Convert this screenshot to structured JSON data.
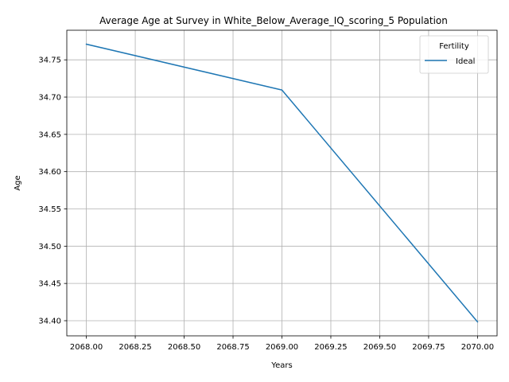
{
  "chart_data": {
    "type": "line",
    "title": "Average Age at Survey in White_Below_Average_IQ_scoring_5 Population",
    "xlabel": "Years",
    "ylabel": "Age",
    "x": [
      2068,
      2069,
      2070
    ],
    "series": [
      {
        "name": "Ideal",
        "values": [
          34.771,
          34.7095,
          34.3985
        ],
        "color": "#1f77b4"
      }
    ],
    "xlim": [
      2067.9,
      2070.1
    ],
    "ylim": [
      34.3797,
      34.7897
    ],
    "x_ticks": [
      2068.0,
      2068.25,
      2068.5,
      2068.75,
      2069.0,
      2069.25,
      2069.5,
      2069.75,
      2070.0
    ],
    "x_tick_labels": [
      "2068.00",
      "2068.25",
      "2068.50",
      "2068.75",
      "2069.00",
      "2069.25",
      "2069.50",
      "2069.75",
      "2070.00"
    ],
    "y_ticks": [
      34.4,
      34.45,
      34.5,
      34.55,
      34.6,
      34.65,
      34.7,
      34.75
    ],
    "y_tick_labels": [
      "34.40",
      "34.45",
      "34.50",
      "34.55",
      "34.60",
      "34.65",
      "34.70",
      "34.75"
    ],
    "grid": true,
    "legend": {
      "title": "Fertility",
      "placement": "top-right"
    }
  }
}
